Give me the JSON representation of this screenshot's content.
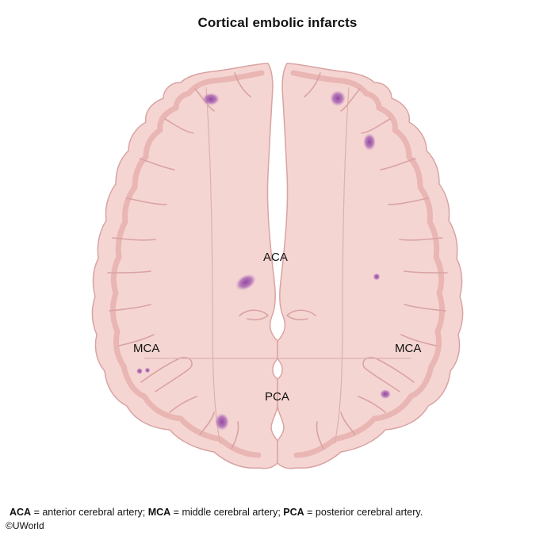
{
  "title": "Cortical embolic infarcts",
  "regions": {
    "aca": "ACA",
    "mca_left": "MCA",
    "mca_right": "MCA",
    "pca": "PCA"
  },
  "legend": [
    {
      "abbr": "ACA",
      "text": " = anterior cerebral artery; "
    },
    {
      "abbr": "MCA",
      "text": " = middle cerebral artery; "
    },
    {
      "abbr": "PCA",
      "text": " = posterior cerebral artery."
    }
  ],
  "copyright": "©UWorld",
  "colors": {
    "brain_fill": "#f5d5d1",
    "cortex_band": "#e8b2b0",
    "outline": "#d9a3a3",
    "infarct": "#9a4fa6"
  }
}
